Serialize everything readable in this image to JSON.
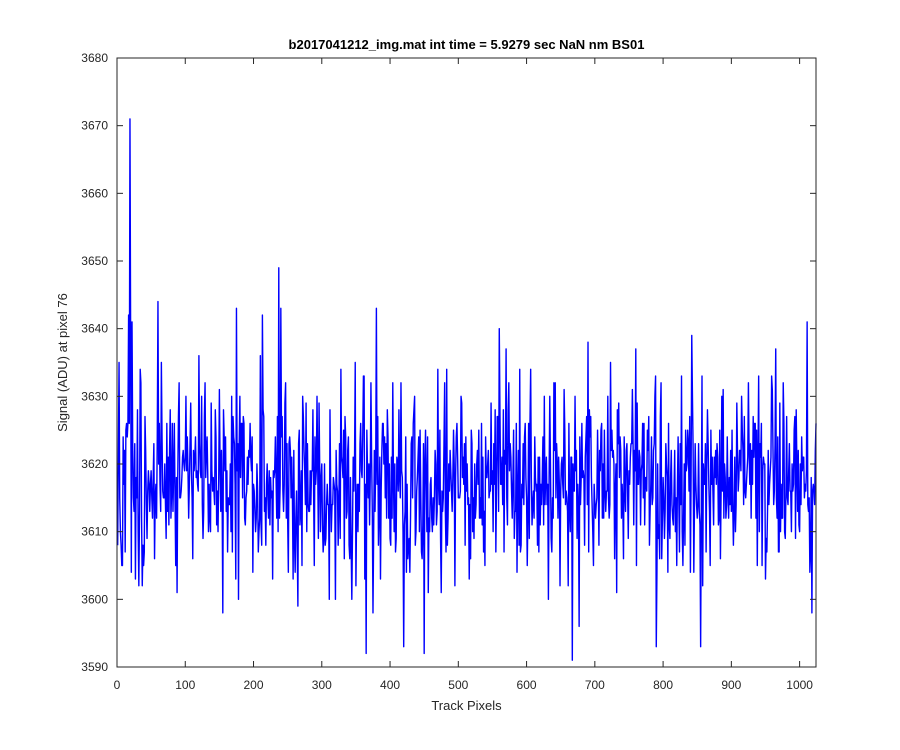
{
  "chart_data": {
    "type": "line",
    "title": "b2017041212_img.mat int time = 5.9279 sec  NaN nm BS01",
    "xlabel": "Track Pixels",
    "ylabel": "Signal (ADU) at pixel 76",
    "xlim": [
      0,
      1024
    ],
    "ylim": [
      3590,
      3680
    ],
    "xticks": [
      0,
      100,
      200,
      300,
      400,
      500,
      600,
      700,
      800,
      900,
      1000
    ],
    "yticks": [
      3590,
      3600,
      3610,
      3620,
      3630,
      3640,
      3650,
      3660,
      3670,
      3680
    ],
    "grid": false,
    "line_color": "#0000ff",
    "series": [
      {
        "x_start": 1,
        "x_step": 1,
        "mean": 3617,
        "std": 7,
        "n_points": 1024,
        "landmarks": [
          [
            3,
            3635
          ],
          [
            8,
            3605
          ],
          [
            12,
            3607
          ],
          [
            15,
            3624
          ],
          [
            17,
            3642
          ],
          [
            18,
            3626
          ],
          [
            19,
            3671
          ],
          [
            20,
            3638
          ],
          [
            21,
            3604
          ],
          [
            22,
            3641
          ],
          [
            26,
            3623
          ],
          [
            30,
            3628
          ],
          [
            32,
            3602
          ],
          [
            35,
            3632
          ],
          [
            60,
            3644
          ],
          [
            65,
            3635
          ],
          [
            88,
            3601
          ],
          [
            120,
            3636
          ],
          [
            175,
            3643
          ],
          [
            178,
            3600
          ],
          [
            210,
            3636
          ],
          [
            213,
            3642
          ],
          [
            237,
            3649
          ],
          [
            240,
            3643
          ],
          [
            265,
            3634
          ],
          [
            265,
            3599
          ],
          [
            365,
            3592
          ],
          [
            372,
            3632
          ],
          [
            380,
            3643
          ],
          [
            392,
            3624
          ],
          [
            420,
            3593
          ],
          [
            450,
            3592
          ],
          [
            470,
            3634
          ],
          [
            483,
            3634
          ],
          [
            548,
            3629
          ],
          [
            560,
            3640
          ],
          [
            590,
            3634
          ],
          [
            606,
            3634
          ],
          [
            640,
            3632
          ],
          [
            667,
            3591
          ],
          [
            677,
            3596
          ],
          [
            690,
            3638
          ],
          [
            760,
            3637
          ],
          [
            790,
            3593
          ],
          [
            842,
            3639
          ],
          [
            855,
            3593
          ],
          [
            886,
            3630
          ],
          [
            940,
            3633
          ],
          [
            965,
            3637
          ],
          [
            1011,
            3641
          ],
          [
            1015,
            3604
          ],
          [
            1020,
            3617
          ]
        ]
      }
    ]
  }
}
